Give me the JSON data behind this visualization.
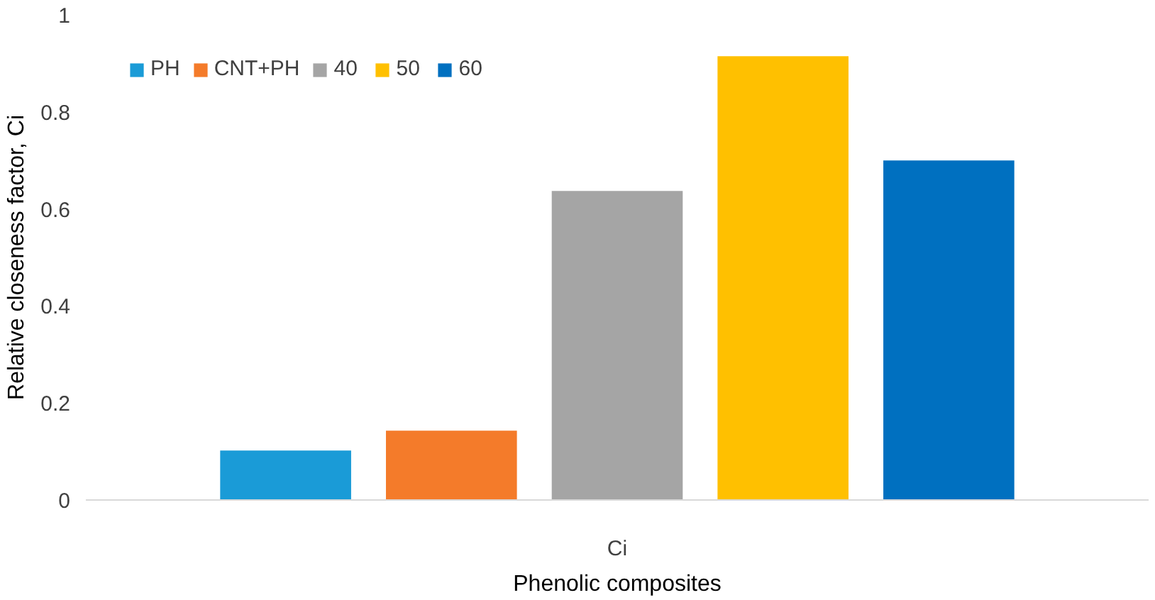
{
  "chart_data": {
    "type": "bar",
    "xlabel": "Phenolic composites",
    "ylabel": "Relative closeness factor, Ci",
    "categories": [
      "Ci"
    ],
    "series": [
      {
        "name": "PH",
        "color": "#1a9bd7",
        "values": [
          0.102
        ]
      },
      {
        "name": "CNT+PH",
        "color": "#f47b2a",
        "values": [
          0.143
        ]
      },
      {
        "name": "40",
        "color": "#a5a5a5",
        "values": [
          0.637
        ]
      },
      {
        "name": "50",
        "color": "#ffc000",
        "values": [
          0.915
        ]
      },
      {
        "name": "60",
        "color": "#0070c0",
        "values": [
          0.7
        ]
      }
    ],
    "ylim": [
      0,
      1
    ],
    "yticks": [
      0,
      0.2,
      0.4,
      0.6,
      0.8,
      1
    ],
    "grid": false,
    "legend": "top left"
  }
}
